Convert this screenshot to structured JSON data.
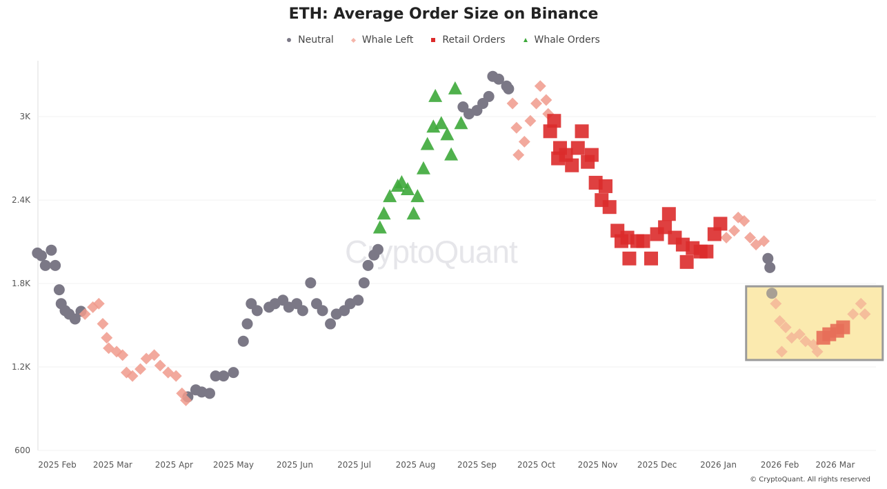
{
  "chart_data": {
    "type": "scatter",
    "title": "ETH: Average Order Size on Binance",
    "watermark": "CryptoQuant",
    "copyright": "© CryptoQuant. All rights reserved",
    "legend_position": "top-center",
    "grid": true,
    "ylim": [
      600,
      3400
    ],
    "y_ticks": [
      600,
      1200,
      1800,
      2400,
      3000
    ],
    "y_tick_labels": [
      "600",
      "1.2K",
      "1.8K",
      "2.4K",
      "3K"
    ],
    "x_ticks": [
      "2025-02-01",
      "2025-03-01",
      "2025-04-01",
      "2025-05-01",
      "2025-06-01",
      "2025-07-01",
      "2025-08-01",
      "2025-09-01",
      "2025-10-01",
      "2025-11-01",
      "2025-12-01",
      "2026-01-01",
      "2026-02-01",
      "2026-03-01"
    ],
    "x_tick_labels": [
      "2025 Feb",
      "2025 Mar",
      "2025 Apr",
      "2025 May",
      "2025 Jun",
      "2025 Jul",
      "2025 Aug",
      "2025 Sep",
      "2025 Oct",
      "2025 Nov",
      "2025 Dec",
      "2026 Jan",
      "2026 Feb",
      "2026 Mar"
    ],
    "highlight": {
      "x": [
        "2026-01-15",
        "2026-03-25"
      ],
      "y": [
        1250,
        1780
      ],
      "color": "#fbeab0"
    },
    "series": [
      {
        "name": "Neutral",
        "marker": "circle",
        "color": "#7b7886",
        "points": [
          [
            "2025-01-22",
            2019
          ],
          [
            "2025-01-24",
            2000
          ],
          [
            "2025-01-26",
            1930
          ],
          [
            "2025-01-29",
            2040
          ],
          [
            "2025-01-31",
            1930
          ],
          [
            "2025-02-02",
            1755
          ],
          [
            "2025-02-03",
            1655
          ],
          [
            "2025-02-05",
            1605
          ],
          [
            "2025-02-07",
            1580
          ],
          [
            "2025-02-10",
            1545
          ],
          [
            "2025-02-13",
            1600
          ],
          [
            "2025-04-08",
            985
          ],
          [
            "2025-04-12",
            1035
          ],
          [
            "2025-04-15",
            1020
          ],
          [
            "2025-04-19",
            1010
          ],
          [
            "2025-04-22",
            1135
          ],
          [
            "2025-04-26",
            1135
          ],
          [
            "2025-05-01",
            1160
          ],
          [
            "2025-05-06",
            1385
          ],
          [
            "2025-05-08",
            1510
          ],
          [
            "2025-05-10",
            1655
          ],
          [
            "2025-05-13",
            1605
          ],
          [
            "2025-05-19",
            1630
          ],
          [
            "2025-05-22",
            1655
          ],
          [
            "2025-05-26",
            1680
          ],
          [
            "2025-05-29",
            1630
          ],
          [
            "2025-06-02",
            1655
          ],
          [
            "2025-06-05",
            1605
          ],
          [
            "2025-06-09",
            1805
          ],
          [
            "2025-06-12",
            1655
          ],
          [
            "2025-06-15",
            1605
          ],
          [
            "2025-06-19",
            1510
          ],
          [
            "2025-06-22",
            1580
          ],
          [
            "2025-06-26",
            1605
          ],
          [
            "2025-06-29",
            1655
          ],
          [
            "2025-07-03",
            1680
          ],
          [
            "2025-07-06",
            1805
          ],
          [
            "2025-07-08",
            1930
          ],
          [
            "2025-07-11",
            2005
          ],
          [
            "2025-07-13",
            2045
          ],
          [
            "2025-08-25",
            3070
          ],
          [
            "2025-08-28",
            3020
          ],
          [
            "2025-09-01",
            3045
          ],
          [
            "2025-09-04",
            3095
          ],
          [
            "2025-09-07",
            3145
          ],
          [
            "2025-09-09",
            3290
          ],
          [
            "2025-09-12",
            3270
          ],
          [
            "2025-09-16",
            3220
          ],
          [
            "2025-09-17",
            3200
          ],
          [
            "2026-01-26",
            1980
          ],
          [
            "2026-01-27",
            1915
          ],
          [
            "2026-01-28",
            1730
          ]
        ]
      },
      {
        "name": "Whale Left",
        "marker": "diamond",
        "color": "#f09a8c",
        "points": [
          [
            "2025-02-15",
            1580
          ],
          [
            "2025-02-19",
            1630
          ],
          [
            "2025-02-22",
            1655
          ],
          [
            "2025-02-24",
            1510
          ],
          [
            "2025-02-26",
            1410
          ],
          [
            "2025-02-27",
            1335
          ],
          [
            "2025-03-03",
            1310
          ],
          [
            "2025-03-06",
            1285
          ],
          [
            "2025-03-08",
            1160
          ],
          [
            "2025-03-11",
            1135
          ],
          [
            "2025-03-15",
            1185
          ],
          [
            "2025-03-18",
            1260
          ],
          [
            "2025-03-22",
            1285
          ],
          [
            "2025-03-25",
            1210
          ],
          [
            "2025-03-29",
            1160
          ],
          [
            "2025-04-02",
            1135
          ],
          [
            "2025-04-05",
            1010
          ],
          [
            "2025-04-07",
            960
          ],
          [
            "2025-09-19",
            3095
          ],
          [
            "2025-09-21",
            2920
          ],
          [
            "2025-09-22",
            2725
          ],
          [
            "2025-09-25",
            2820
          ],
          [
            "2025-09-28",
            2970
          ],
          [
            "2025-10-01",
            3095
          ],
          [
            "2025-10-03",
            3220
          ],
          [
            "2025-10-06",
            3120
          ],
          [
            "2025-10-07",
            3020
          ],
          [
            "2026-01-05",
            2130
          ],
          [
            "2026-01-09",
            2180
          ],
          [
            "2026-01-11",
            2275
          ],
          [
            "2026-01-14",
            2250
          ],
          [
            "2026-01-17",
            2130
          ],
          [
            "2026-01-20",
            2080
          ],
          [
            "2026-01-24",
            2105
          ],
          [
            "2026-01-30",
            1655
          ],
          [
            "2026-02-01",
            1530
          ],
          [
            "2026-02-02",
            1310
          ],
          [
            "2026-02-04",
            1485
          ],
          [
            "2026-02-07",
            1410
          ],
          [
            "2026-02-11",
            1435
          ],
          [
            "2026-02-14",
            1385
          ],
          [
            "2026-02-18",
            1360
          ],
          [
            "2026-02-20",
            1310
          ],
          [
            "2026-03-10",
            1580
          ],
          [
            "2026-03-14",
            1655
          ],
          [
            "2026-03-16",
            1580
          ]
        ]
      },
      {
        "name": "Retail Orders",
        "marker": "square",
        "color": "#dc2b2b",
        "points": [
          [
            "2025-10-08",
            2895
          ],
          [
            "2025-10-10",
            2970
          ],
          [
            "2025-10-12",
            2700
          ],
          [
            "2025-10-13",
            2775
          ],
          [
            "2025-10-16",
            2725
          ],
          [
            "2025-10-19",
            2650
          ],
          [
            "2025-10-22",
            2775
          ],
          [
            "2025-10-24",
            2895
          ],
          [
            "2025-10-27",
            2675
          ],
          [
            "2025-10-29",
            2725
          ],
          [
            "2025-10-31",
            2525
          ],
          [
            "2025-11-03",
            2400
          ],
          [
            "2025-11-05",
            2500
          ],
          [
            "2025-11-07",
            2350
          ],
          [
            "2025-11-11",
            2180
          ],
          [
            "2025-11-13",
            2105
          ],
          [
            "2025-11-16",
            2130
          ],
          [
            "2025-11-17",
            1980
          ],
          [
            "2025-11-21",
            2105
          ],
          [
            "2025-11-24",
            2105
          ],
          [
            "2025-11-28",
            1980
          ],
          [
            "2025-12-01",
            2155
          ],
          [
            "2025-12-05",
            2205
          ],
          [
            "2025-12-07",
            2300
          ],
          [
            "2025-12-10",
            2130
          ],
          [
            "2025-12-14",
            2080
          ],
          [
            "2025-12-16",
            1955
          ],
          [
            "2025-12-19",
            2055
          ],
          [
            "2025-12-23",
            2030
          ],
          [
            "2025-12-26",
            2030
          ],
          [
            "2025-12-30",
            2155
          ],
          [
            "2026-01-02",
            2230
          ],
          [
            "2026-02-23",
            1410
          ],
          [
            "2026-02-26",
            1435
          ],
          [
            "2026-03-02",
            1460
          ],
          [
            "2026-03-05",
            1485
          ]
        ]
      },
      {
        "name": "Whale Orders",
        "marker": "triangle",
        "color": "#3da83a",
        "points": [
          [
            "2025-07-14",
            2200
          ],
          [
            "2025-07-16",
            2300
          ],
          [
            "2025-07-19",
            2425
          ],
          [
            "2025-07-23",
            2500
          ],
          [
            "2025-07-25",
            2525
          ],
          [
            "2025-07-28",
            2475
          ],
          [
            "2025-07-31",
            2300
          ],
          [
            "2025-08-02",
            2425
          ],
          [
            "2025-08-05",
            2625
          ],
          [
            "2025-08-07",
            2800
          ],
          [
            "2025-08-10",
            2925
          ],
          [
            "2025-08-11",
            3145
          ],
          [
            "2025-08-14",
            2950
          ],
          [
            "2025-08-17",
            2870
          ],
          [
            "2025-08-19",
            2725
          ],
          [
            "2025-08-21",
            3200
          ],
          [
            "2025-08-24",
            2950
          ]
        ]
      }
    ]
  }
}
